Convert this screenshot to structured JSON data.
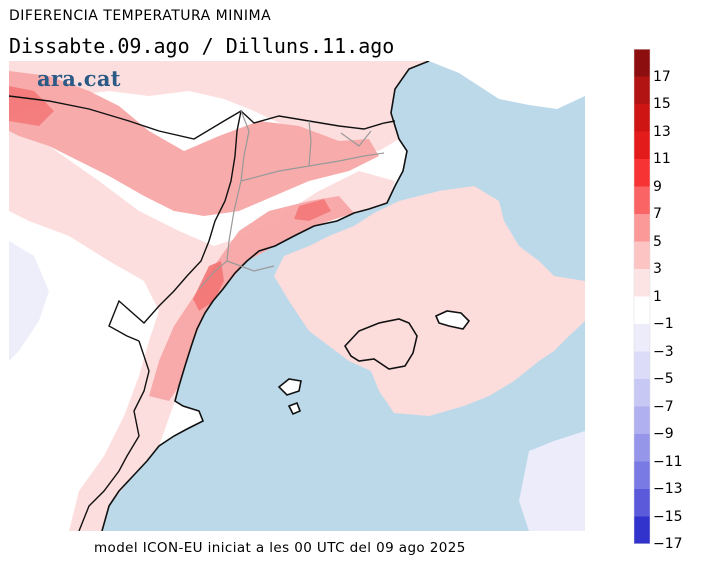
{
  "title": "DIFERENCIA TEMPERATURA MINIMA",
  "subtitle": "Dissabte.09.ago / Dilluns.11.ago",
  "logo": "ara.cat",
  "footer": "model ICON-EU iniciat a les 00 UTC del 09 ago 2025",
  "colors": {
    "sea": "#bcd9ea",
    "land_neutral": "#ffffff",
    "warm_1": "#fddcdc",
    "warm_3": "#f8a6a6",
    "warm_5": "#f37474",
    "cold_1": "#ececfb",
    "cold_3": "#d6d6f7",
    "coast": "#111111",
    "borders": "#999999"
  },
  "legend": {
    "items": [
      {
        "label": "17",
        "color": "#8c0e0e"
      },
      {
        "label": "15",
        "color": "#b21414"
      },
      {
        "label": "13",
        "color": "#cf1414"
      },
      {
        "label": "11",
        "color": "#e31b1b"
      },
      {
        "label": "9",
        "color": "#f73333"
      },
      {
        "label": "7",
        "color": "#fa6464"
      },
      {
        "label": "5",
        "color": "#fb9898"
      },
      {
        "label": "3",
        "color": "#fdc4c4"
      },
      {
        "label": "1",
        "color": "#fde4e4"
      },
      {
        "label": "-1",
        "color": "#ffffff"
      },
      {
        "label": "-3",
        "color": "#ececfb"
      },
      {
        "label": "-5",
        "color": "#dcdcf8"
      },
      {
        "label": "-7",
        "color": "#c8c8f5"
      },
      {
        "label": "-9",
        "color": "#b0b0f0"
      },
      {
        "label": "-11",
        "color": "#9595ea"
      },
      {
        "label": "-13",
        "color": "#7a7ae5"
      },
      {
        "label": "-15",
        "color": "#5a5adb"
      },
      {
        "label": "-17",
        "color": "#3232cc"
      }
    ]
  }
}
